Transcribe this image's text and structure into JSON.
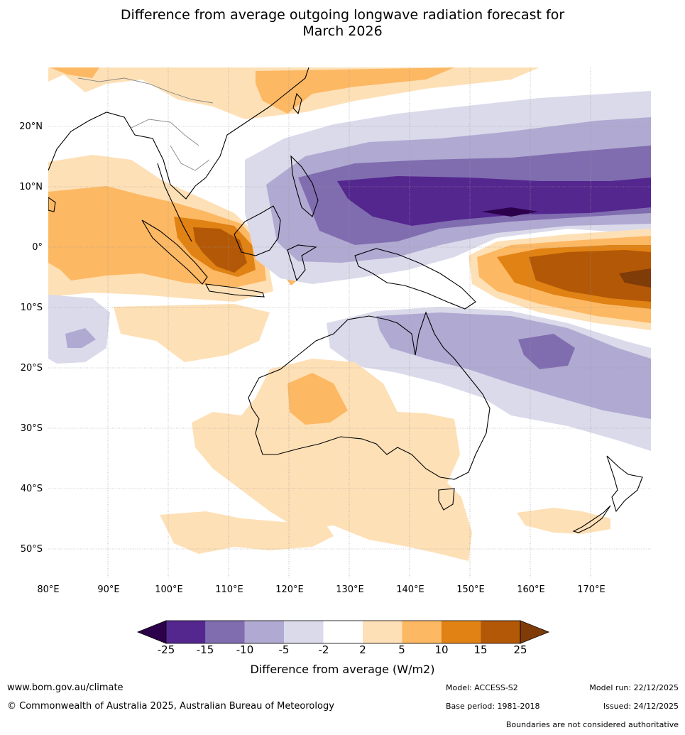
{
  "title": {
    "line1": "Difference from average outgoing longwave radiation forecast for",
    "line2": "March 2026"
  },
  "map": {
    "lat_labels": [
      "20°N",
      "10°N",
      "0°",
      "10°S",
      "20°S",
      "30°S",
      "40°S",
      "50°S"
    ],
    "lon_labels": [
      "80°E",
      "90°E",
      "100°E",
      "110°E",
      "120°E",
      "130°E",
      "140°E",
      "150°E",
      "160°E",
      "170°E"
    ]
  },
  "colorbar": {
    "ticks": [
      "-25",
      "-15",
      "-10",
      "-5",
      "-2",
      "2",
      "5",
      "10",
      "15",
      "25"
    ],
    "colors": [
      "#54278f",
      "#806db0",
      "#b0a9d1",
      "#dadaeb",
      "#ffffff",
      "#fee0b6",
      "#fdb863",
      "#e08214",
      "#b35806"
    ],
    "under_color": "#2d004b",
    "over_color": "#7f3b08",
    "label": "Difference from average (W/m2)"
  },
  "footer": {
    "website": "www.bom.gov.au/climate",
    "copyright": "© Commonwealth of Australia 2025, Australian Bureau of Meteorology",
    "model": "Model: ACCESS-S2",
    "base_period": "Base period: 1981-2018",
    "model_run": "Model run: 22/12/2025",
    "issued": "Issued: 24/12/2025",
    "disclaimer": "Boundaries are not considered authoritative"
  }
}
